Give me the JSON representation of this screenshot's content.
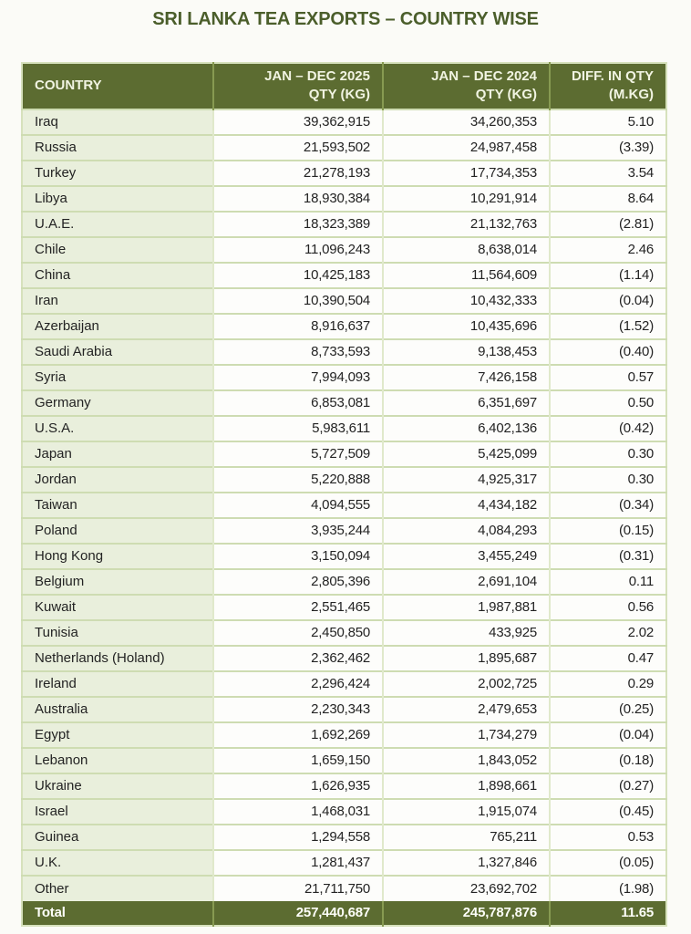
{
  "page": {
    "title": "SRI LANKA TEA EXPORTS – COUNTRY WISE"
  },
  "colors": {
    "header_bg": "#5c6c31",
    "header_text": "#f1f4e2",
    "country_cell_bg": "#e9efdc",
    "numeric_cell_bg": "#fdfdfb",
    "grid_line": "#cedcb2",
    "title_text": "#4b5e2b",
    "total_bg": "#5c6c31",
    "total_text": "#fdfef8",
    "body_text": "#232323"
  },
  "table": {
    "header": {
      "country": "COUNTRY",
      "qty2025_line1": "JAN – DEC 2025",
      "qty2025_line2": "QTY (KG)",
      "qty2024_line1": "JAN – DEC 2024",
      "qty2024_line2": "QTY (KG)",
      "diff_line1": "DIFF. IN QTY",
      "diff_line2": "(M.KG)"
    },
    "total": {
      "label": "Total",
      "qty2025": "257,440,687",
      "qty2024": "245,787,876",
      "diff": "11.65"
    }
  },
  "chart_data": {
    "type": "table",
    "title": "SRI LANKA TEA EXPORTS – COUNTRY WISE",
    "columns": [
      "COUNTRY",
      "JAN – DEC 2025 QTY (KG)",
      "JAN – DEC 2024 QTY (KG)",
      "DIFF. IN QTY (M.KG)"
    ],
    "rows": [
      [
        "Iraq",
        "39,362,915",
        "34,260,353",
        "5.10"
      ],
      [
        "Russia",
        "21,593,502",
        "24,987,458",
        "(3.39)"
      ],
      [
        "Turkey",
        "21,278,193",
        "17,734,353",
        "3.54"
      ],
      [
        "Libya",
        "18,930,384",
        "10,291,914",
        "8.64"
      ],
      [
        "U.A.E.",
        "18,323,389",
        "21,132,763",
        "(2.81)"
      ],
      [
        "Chile",
        "11,096,243",
        "8,638,014",
        "2.46"
      ],
      [
        "China",
        "10,425,183",
        "11,564,609",
        "(1.14)"
      ],
      [
        "Iran",
        "10,390,504",
        "10,432,333",
        "(0.04)"
      ],
      [
        "Azerbaijan",
        "8,916,637",
        "10,435,696",
        "(1.52)"
      ],
      [
        "Saudi Arabia",
        "8,733,593",
        "9,138,453",
        "(0.40)"
      ],
      [
        "Syria",
        "7,994,093",
        "7,426,158",
        "0.57"
      ],
      [
        "Germany",
        "6,853,081",
        "6,351,697",
        "0.50"
      ],
      [
        "U.S.A.",
        "5,983,611",
        "6,402,136",
        "(0.42)"
      ],
      [
        "Japan",
        "5,727,509",
        "5,425,099",
        "0.30"
      ],
      [
        "Jordan",
        "5,220,888",
        "4,925,317",
        "0.30"
      ],
      [
        "Taiwan",
        "4,094,555",
        "4,434,182",
        "(0.34)"
      ],
      [
        "Poland",
        "3,935,244",
        "4,084,293",
        "(0.15)"
      ],
      [
        "Hong Kong",
        "3,150,094",
        "3,455,249",
        "(0.31)"
      ],
      [
        "Belgium",
        "2,805,396",
        "2,691,104",
        "0.11"
      ],
      [
        "Kuwait",
        "2,551,465",
        "1,987,881",
        "0.56"
      ],
      [
        "Tunisia",
        "2,450,850",
        "433,925",
        "2.02"
      ],
      [
        "Netherlands (Holand)",
        "2,362,462",
        "1,895,687",
        "0.47"
      ],
      [
        "Ireland",
        "2,296,424",
        "2,002,725",
        "0.29"
      ],
      [
        "Australia",
        "2,230,343",
        "2,479,653",
        "(0.25)"
      ],
      [
        "Egypt",
        "1,692,269",
        "1,734,279",
        "(0.04)"
      ],
      [
        "Lebanon",
        "1,659,150",
        "1,843,052",
        "(0.18)"
      ],
      [
        "Ukraine",
        "1,626,935",
        "1,898,661",
        "(0.27)"
      ],
      [
        "Israel",
        "1,468,031",
        "1,915,074",
        "(0.45)"
      ],
      [
        "Guinea",
        "1,294,558",
        "765,211",
        "0.53"
      ],
      [
        "U.K.",
        "1,281,437",
        "1,327,846",
        "(0.05)"
      ],
      [
        "Other",
        "21,711,750",
        "23,692,702",
        "(1.98)"
      ]
    ],
    "total_row": [
      "Total",
      "257,440,687",
      "245,787,876",
      "11.65"
    ]
  }
}
